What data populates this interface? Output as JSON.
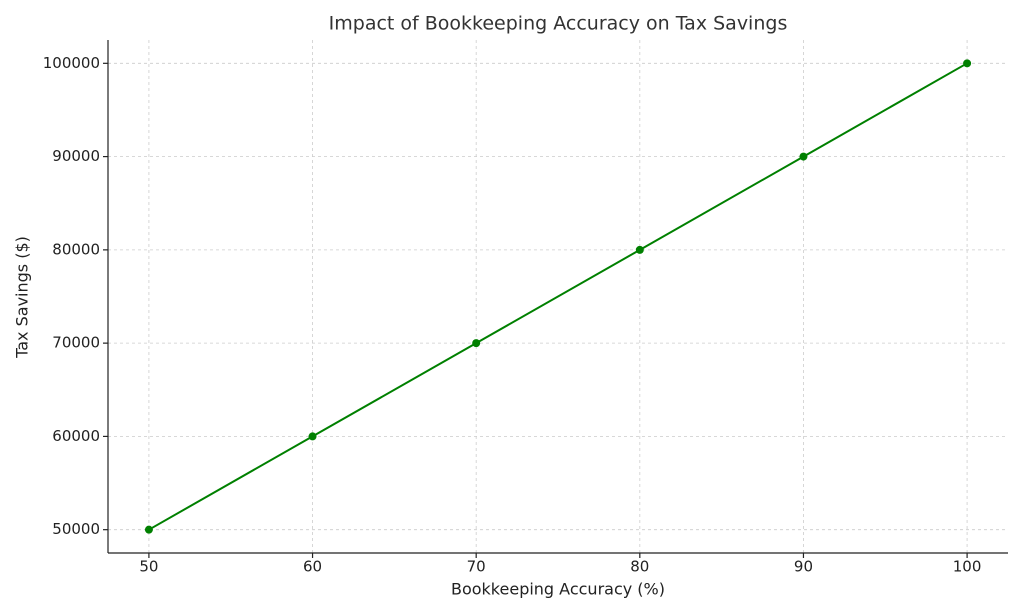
{
  "chart_data": {
    "type": "line",
    "title": "Impact of Bookkeeping Accuracy on Tax Savings",
    "x_label": "Bookkeeping Accuracy (%)",
    "y_label": "Tax Savings ($)",
    "x": [
      50,
      60,
      70,
      80,
      90,
      100
    ],
    "series": [
      {
        "name": "Tax Savings",
        "color": "#008000",
        "values": [
          50000,
          60000,
          70000,
          80000,
          90000,
          100000
        ]
      }
    ],
    "xlim": [
      47.5,
      102.5
    ],
    "xticks": [
      50,
      60,
      70,
      80,
      90,
      100
    ],
    "ylim": [
      47500,
      102500
    ],
    "yticks": [
      50000,
      60000,
      70000,
      80000,
      90000,
      100000
    ],
    "grid": true
  }
}
